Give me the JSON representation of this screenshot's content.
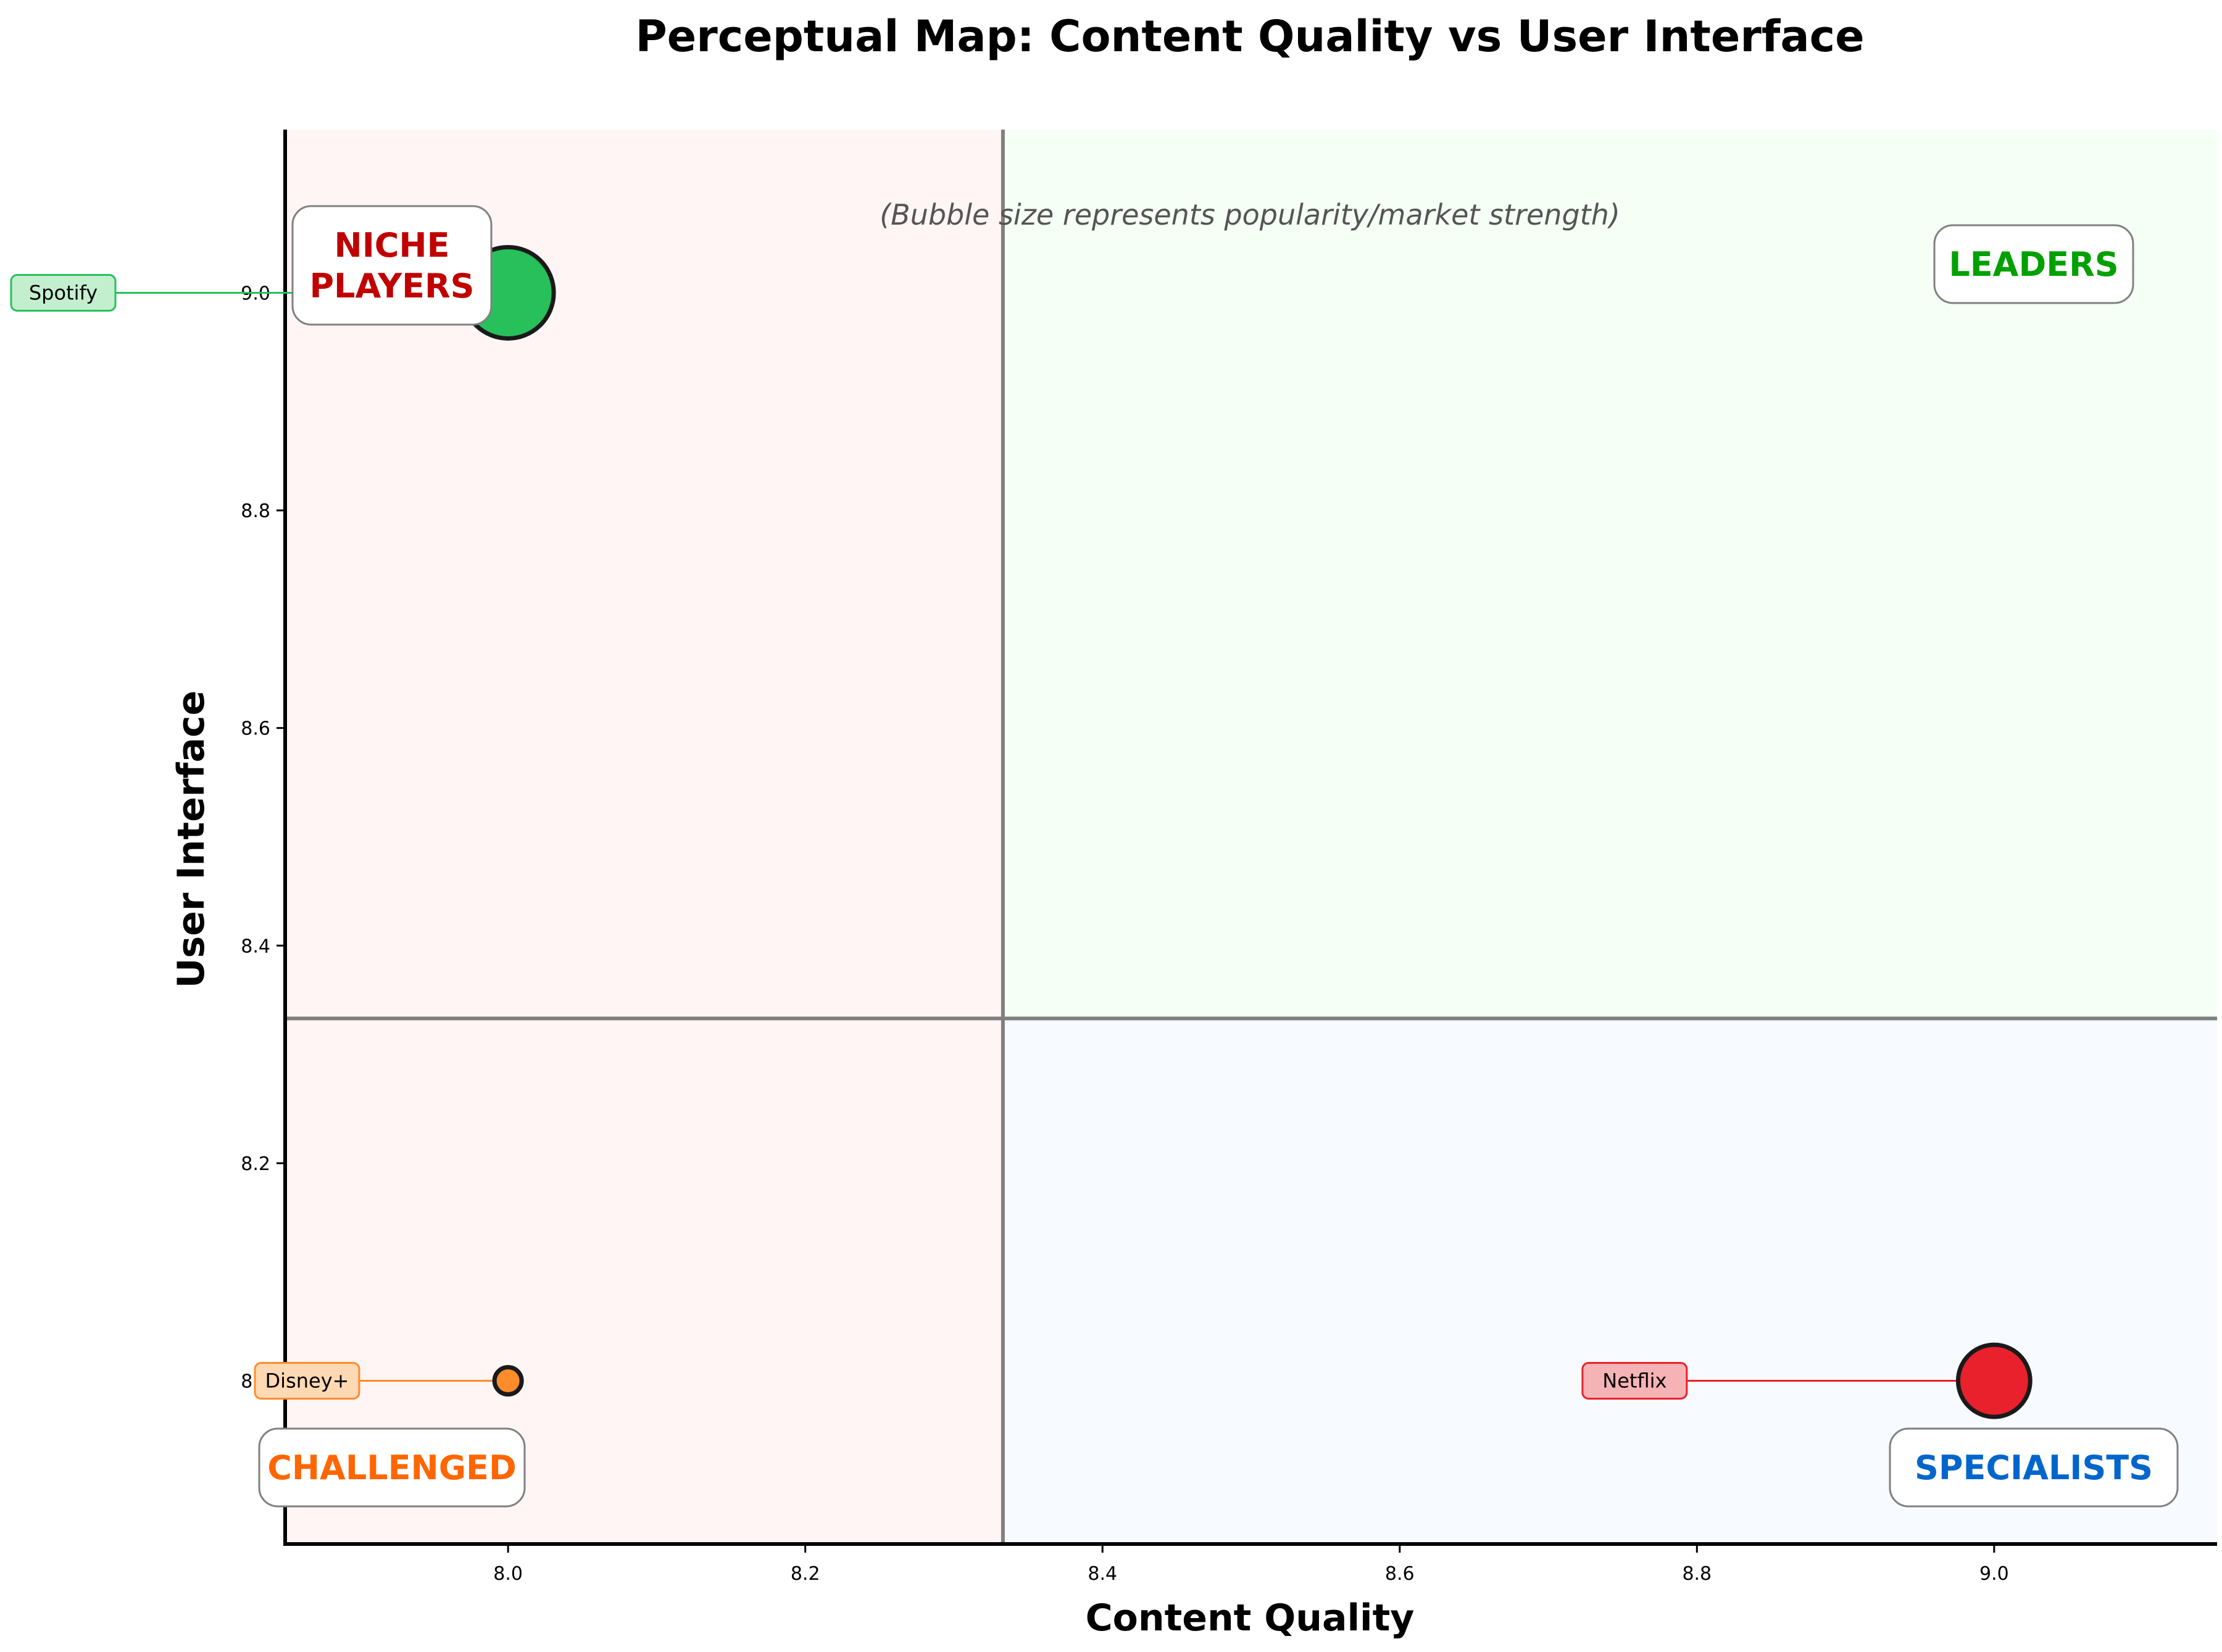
{
  "chart_data": {
    "type": "scatter",
    "title": "Perceptual Map: Content Quality vs User Interface",
    "subtitle": "(Bubble size represents popularity/market strength)",
    "xlabel": "Content Quality",
    "ylabel": "User Interface",
    "xlim": [
      7.85,
      9.15
    ],
    "ylim": [
      7.85,
      9.15
    ],
    "xticks": [
      8.0,
      8.2,
      8.4,
      8.6,
      8.8,
      9.0
    ],
    "yticks": [
      8.0,
      8.2,
      8.4,
      8.6,
      8.8,
      9.0
    ],
    "tick_labels": {
      "x": [
        "8.0",
        "8.2",
        "8.4",
        "8.6",
        "8.8",
        "9.0"
      ],
      "y": [
        "8.0",
        "8.2",
        "8.4",
        "8.6",
        "8.8",
        "9.0"
      ]
    },
    "quadrant_split": {
      "x": 8.333,
      "y": 8.333
    },
    "grid": false,
    "quadrants": [
      {
        "label": "NICHE\nPLAYERS",
        "position": "top-left",
        "color": "#c00000",
        "fill": "#fff5f5"
      },
      {
        "label": "LEADERS",
        "position": "top-right",
        "color": "#00a000",
        "fill": "#f5fff5"
      },
      {
        "label": "CHALLENGED",
        "position": "bottom-left",
        "color": "#ff6600",
        "fill": "#fff5f5"
      },
      {
        "label": "SPECIALISTS",
        "position": "bottom-right",
        "color": "#0066cc",
        "fill": "#f7faff"
      }
    ],
    "points": [
      {
        "name": "Spotify",
        "x": 8.0,
        "y": 9.0,
        "size": 3.0,
        "color": "#27c05a",
        "label_bg": "#c3efcf"
      },
      {
        "name": "Disney+",
        "x": 8.0,
        "y": 8.0,
        "size": 1.0,
        "color": "#ff8c2a",
        "label_bg": "#ffd9b3"
      },
      {
        "name": "Netflix",
        "x": 9.0,
        "y": 8.0,
        "size": 2.4,
        "color": "#e8212c",
        "label_bg": "#f6b3b6"
      }
    ]
  }
}
